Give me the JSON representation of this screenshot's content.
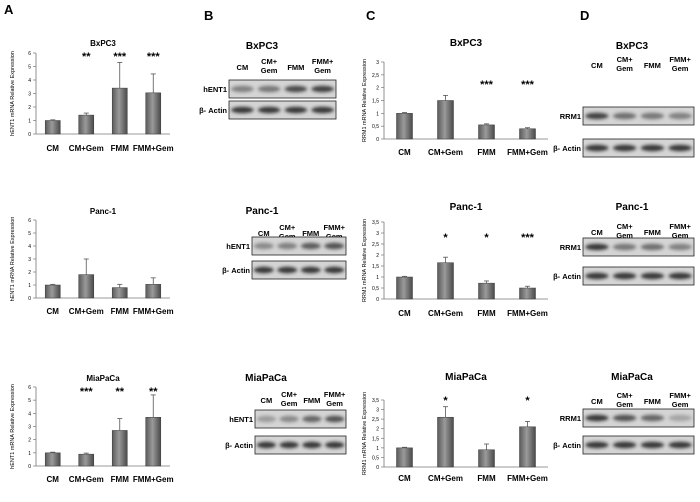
{
  "panel_letters": [
    "A",
    "B",
    "C",
    "D"
  ],
  "marker_labels": {
    "hent1": "hENT1",
    "rrm1": "RRM1",
    "actin": "β- Actin"
  },
  "blot_lanes": [
    "CM",
    "CM+ Gem",
    "FMM",
    "FMM+ Gem"
  ],
  "blots": [
    {
      "panel": "B",
      "title": "BxPC3",
      "target": "hENT1"
    },
    {
      "panel": "B",
      "title": "Panc-1",
      "target": "hENT1"
    },
    {
      "panel": "B",
      "title": "MiaPaCa",
      "target": "hENT1"
    },
    {
      "panel": "D",
      "title": "BxPC3",
      "target": "RRM1"
    },
    {
      "panel": "D",
      "title": "Panc-1",
      "target": "RRM1"
    },
    {
      "panel": "D",
      "title": "MiaPaCa",
      "target": "RRM1"
    }
  ],
  "chart_data": [
    {
      "type": "bar",
      "panel": "A",
      "title": "BxPC3",
      "ylabel": "hENT1 mRNA Relative Expression",
      "categories": [
        "CM",
        "CM+Gem",
        "FMM",
        "FMM+Gem"
      ],
      "values": [
        1,
        1.4,
        3.4,
        3.05
      ],
      "errors": [
        0.05,
        0.15,
        1.9,
        1.4
      ],
      "significance": [
        "",
        "**",
        "***",
        "***"
      ],
      "ylim": [
        0,
        6
      ],
      "ticks": [
        "0",
        "1",
        "2",
        "3",
        "4",
        "5",
        "6"
      ]
    },
    {
      "type": "bar",
      "panel": "A",
      "title": "Panc-1",
      "ylabel": "hENT1 mRNA Relative Expression",
      "categories": [
        "CM",
        "CM+Gem",
        "FMM",
        "FMM+Gem"
      ],
      "values": [
        1,
        1.8,
        0.8,
        1.05
      ],
      "errors": [
        0.05,
        1.2,
        0.25,
        0.5
      ],
      "significance": [
        "",
        "",
        "",
        ""
      ],
      "ylim": [
        0,
        6
      ],
      "ticks": [
        "0",
        "1",
        "2",
        "3",
        "4",
        "5",
        "6"
      ]
    },
    {
      "type": "bar",
      "panel": "A",
      "title": "MiaPaCa",
      "ylabel": "hENT1 mRNA Relative Expression",
      "categories": [
        "CM",
        "CM+Gem",
        "FMM",
        "FMM+Gem"
      ],
      "values": [
        1,
        0.9,
        2.7,
        3.7
      ],
      "errors": [
        0.05,
        0.08,
        0.9,
        1.7
      ],
      "significance": [
        "",
        "***",
        "**",
        "**"
      ],
      "ylim": [
        0,
        6
      ],
      "ticks": [
        "0",
        "1",
        "2",
        "3",
        "4",
        "5",
        "6"
      ]
    },
    {
      "type": "bar",
      "panel": "C",
      "title": "BxPC3",
      "ylabel": "RRM1 mRNA Relative Expression",
      "categories": [
        "CM",
        "CM+Gem",
        "FMM",
        "FMM+Gem"
      ],
      "values": [
        1,
        1.5,
        0.55,
        0.4
      ],
      "errors": [
        0.03,
        0.2,
        0.04,
        0.04
      ],
      "significance": [
        "",
        "",
        "***",
        "***"
      ],
      "ylim": [
        0,
        3
      ],
      "ticks": [
        "0",
        "0,5",
        "1",
        "1,5",
        "2",
        "2,5",
        "3"
      ]
    },
    {
      "type": "bar",
      "panel": "C",
      "title": "Panc-1",
      "ylabel": "RRM1 mRNA Relative Expression",
      "categories": [
        "CM",
        "CM+Gem",
        "FMM",
        "FMM+Gem"
      ],
      "values": [
        1,
        1.65,
        0.72,
        0.5
      ],
      "errors": [
        0.03,
        0.25,
        0.1,
        0.08
      ],
      "significance": [
        "",
        "*",
        "*",
        "***"
      ],
      "ylim": [
        0,
        3.5
      ],
      "ticks": [
        "0",
        "0,5",
        "1",
        "1,5",
        "2",
        "2,5",
        "3",
        "3,5"
      ]
    },
    {
      "type": "bar",
      "panel": "C",
      "title": "MiaPaCa",
      "ylabel": "RRM1 mRNA Relative Expression",
      "categories": [
        "CM",
        "CM+Gem",
        "FMM",
        "FMM+Gem"
      ],
      "values": [
        1,
        2.6,
        0.9,
        2.1
      ],
      "errors": [
        0.03,
        0.55,
        0.3,
        0.28
      ],
      "significance": [
        "",
        "*",
        "",
        "*"
      ],
      "ylim": [
        0,
        3.5
      ],
      "ticks": [
        "0",
        "0,5",
        "1",
        "1,5",
        "2",
        "2,5",
        "3",
        "3,5"
      ]
    }
  ]
}
